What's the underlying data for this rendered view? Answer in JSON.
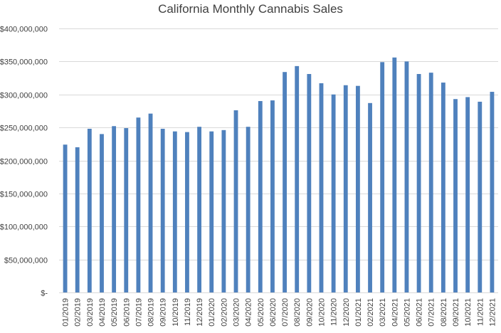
{
  "chart_data": {
    "type": "bar",
    "title": "California Monthly Cannabis Sales",
    "xlabel": "",
    "ylabel": "",
    "ylim": [
      0,
      400000000
    ],
    "yticks": [
      {
        "value": 0,
        "label": "$-"
      },
      {
        "value": 50000000,
        "label": "$50,000,000"
      },
      {
        "value": 100000000,
        "label": "$100,000,000"
      },
      {
        "value": 150000000,
        "label": "$150,000,000"
      },
      {
        "value": 200000000,
        "label": "$200,000,000"
      },
      {
        "value": 250000000,
        "label": "$250,000,000"
      },
      {
        "value": 300000000,
        "label": "$300,000,000"
      },
      {
        "value": 350000000,
        "label": "$350,000,000"
      },
      {
        "value": 400000000,
        "label": "$400,000,000"
      }
    ],
    "grid": true,
    "legend": "none",
    "bar_color": "#4f81bd",
    "categories": [
      "01/2019",
      "02/2019",
      "03/2019",
      "04/2019",
      "05/2019",
      "06/2019",
      "07/2019",
      "08/2019",
      "09/2019",
      "10/2019",
      "11/2019",
      "12/2019",
      "01/2020",
      "02/2020",
      "03/2020",
      "04/2020",
      "05/2020",
      "06/2020",
      "07/2020",
      "08/2020",
      "09/2020",
      "10/2020",
      "11/2020",
      "12/2020",
      "01/2021",
      "02/2021",
      "03/2021",
      "04/2021",
      "05/2021",
      "06/2021",
      "07/2021",
      "08/2021",
      "09/2021",
      "10/2021",
      "11/2021",
      "12/2021"
    ],
    "values": [
      224000000,
      220000000,
      248000000,
      240000000,
      252000000,
      249000000,
      265000000,
      271000000,
      248000000,
      244000000,
      243000000,
      251000000,
      244000000,
      246000000,
      276000000,
      251000000,
      290000000,
      291000000,
      334000000,
      343000000,
      331000000,
      317000000,
      300000000,
      314000000,
      313000000,
      287000000,
      349000000,
      356000000,
      350000000,
      331000000,
      333000000,
      318000000,
      293000000,
      296000000,
      289000000,
      304000000
    ]
  }
}
